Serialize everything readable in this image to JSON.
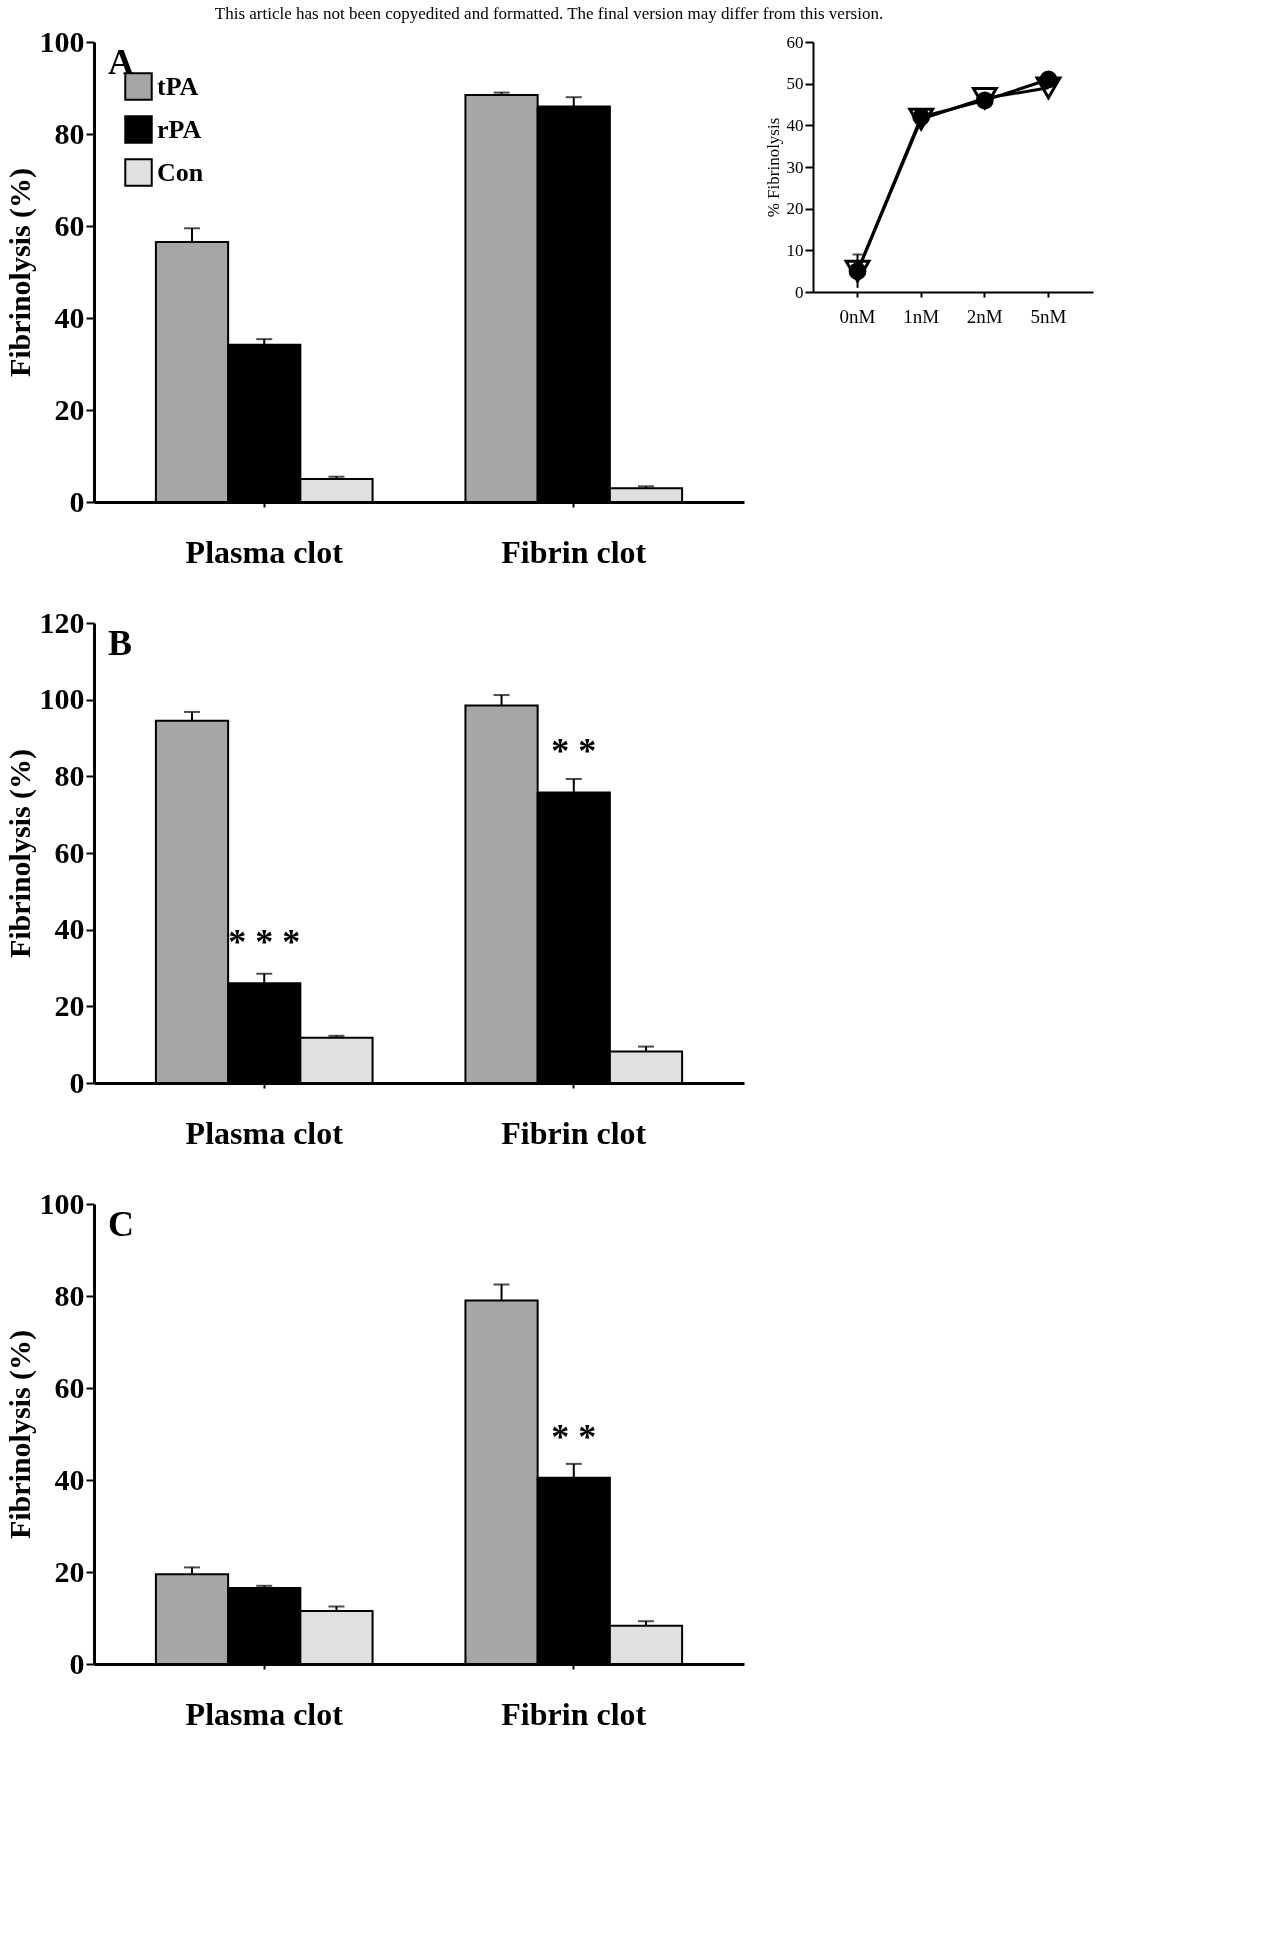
{
  "chart_data": [
    {
      "type": "bar",
      "title": "A",
      "annotations": [
        "This article has not been copyedited and formatted. The final version may differ from this version."
      ],
      "ylabel": "Fibrinolysis (%)",
      "categories": [
        "Plasma clot",
        "Fibrin clot"
      ],
      "ylim": [
        0,
        100
      ],
      "yticks": [
        0,
        20,
        40,
        60,
        80,
        100
      ],
      "grid": false,
      "legend": "top left",
      "series": [
        {
          "name": "tPA",
          "color": "#a6a6a6",
          "values": [
            56.5,
            88.5
          ],
          "errors": [
            3,
            0.5
          ]
        },
        {
          "name": "rPA",
          "color": "#000000",
          "values": [
            34.2,
            86
          ],
          "errors": [
            1.2,
            2
          ]
        },
        {
          "name": "Con",
          "color": "#e0e0e0",
          "values": [
            5,
            3
          ],
          "errors": [
            0.5,
            0.4
          ]
        }
      ]
    },
    {
      "type": "line",
      "ylabel": "% Fibrinolysis",
      "categories": [
        "0nM",
        "1nM",
        "2nM",
        "5nM"
      ],
      "ylim": [
        0,
        60
      ],
      "yticks": [
        0,
        10,
        20,
        30,
        40,
        50,
        60
      ],
      "grid": false,
      "series": [
        {
          "color": "#000000",
          "marker": "circle",
          "values": [
            5,
            42,
            46,
            51
          ],
          "errors": [
            4,
            null,
            null,
            null
          ]
        },
        {
          "color": "#000000",
          "marker": "triangle",
          "values": [
            5,
            41.5,
            46.5,
            49
          ]
        }
      ]
    },
    {
      "type": "bar",
      "title": "B",
      "ylabel": "Fibrinolysis (%)",
      "categories": [
        "Plasma clot",
        "Fibrin clot"
      ],
      "ylim": [
        0,
        120
      ],
      "yticks": [
        0,
        20,
        40,
        60,
        80,
        100,
        120
      ],
      "grid": false,
      "annotations": [
        {
          "text": "* * *",
          "x": "Plasma clot",
          "y": 26
        },
        {
          "text": "* *",
          "x": "Fibrin clot",
          "y": 75.8
        }
      ],
      "series": [
        {
          "color": "#a6a6a6",
          "values": [
            94.5,
            98.5
          ],
          "errors": [
            2.3,
            2.7
          ]
        },
        {
          "color": "#000000",
          "values": [
            26,
            75.8
          ],
          "errors": [
            2.5,
            3.5
          ]
        },
        {
          "color": "#e0e0e0",
          "values": [
            11.8,
            8.2
          ],
          "errors": [
            0.5,
            1.3
          ]
        }
      ]
    },
    {
      "type": "bar",
      "title": "C",
      "ylabel": "Fibrinolysis (%)",
      "categories": [
        "Plasma clot",
        "Fibrin clot"
      ],
      "ylim": [
        0,
        100
      ],
      "yticks": [
        0,
        20,
        40,
        60,
        80,
        100
      ],
      "grid": false,
      "annotations": [
        {
          "text": "* *",
          "x": "Fibrin clot",
          "y": 40.5
        }
      ],
      "series": [
        {
          "color": "#a6a6a6",
          "values": [
            19.5,
            79
          ],
          "errors": [
            1.5,
            3.5
          ]
        },
        {
          "color": "#000000",
          "values": [
            16.5,
            40.5
          ],
          "errors": [
            0.5,
            3
          ]
        },
        {
          "color": "#e0e0e0",
          "values": [
            11.5,
            8.3
          ],
          "errors": [
            1,
            1
          ]
        }
      ]
    }
  ]
}
